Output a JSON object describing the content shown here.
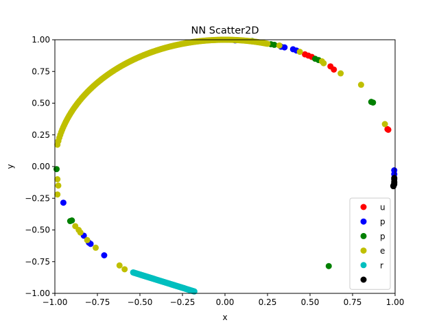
{
  "chart_data": {
    "type": "scatter",
    "title": "NN Scatter2D",
    "xlabel": "x",
    "ylabel": "y",
    "xlim": [
      -1.0,
      1.0
    ],
    "ylim": [
      -1.0,
      1.0
    ],
    "xticks": [
      "−1.00",
      "−0.75",
      "−0.50",
      "−0.25",
      "0.00",
      "0.25",
      "0.50",
      "0.75",
      "1.00"
    ],
    "yticks": [
      "−1.00",
      "−0.75",
      "−0.50",
      "−0.25",
      "0.00",
      "0.25",
      "0.50",
      "0.75",
      "1.00"
    ],
    "grid": false,
    "legend_position": "lower-right",
    "series": [
      {
        "name": "u",
        "color": "#ff0000",
        "points": [
          [
            0.47,
            0.885
          ],
          [
            0.49,
            0.875
          ],
          [
            0.51,
            0.865
          ],
          [
            0.62,
            0.79
          ],
          [
            0.64,
            0.765
          ],
          [
            0.955,
            0.295
          ],
          [
            0.96,
            0.29
          ]
        ]
      },
      {
        "name": "p",
        "color": "#0000ff",
        "points": [
          [
            0.06,
            0.995
          ],
          [
            0.33,
            0.945
          ],
          [
            0.35,
            0.94
          ],
          [
            0.4,
            0.925
          ],
          [
            0.42,
            0.915
          ],
          [
            0.995,
            -0.03
          ],
          [
            0.995,
            -0.06
          ],
          [
            -0.02,
            1.0
          ],
          [
            -0.95,
            -0.285
          ],
          [
            -0.83,
            -0.545
          ],
          [
            -0.8,
            -0.6
          ],
          [
            -0.79,
            -0.61
          ],
          [
            -0.71,
            -0.7
          ]
        ]
      },
      {
        "name": "p",
        "color": "#008000",
        "points": [
          [
            0.16,
            0.99
          ],
          [
            0.27,
            0.965
          ],
          [
            0.29,
            0.96
          ],
          [
            0.53,
            0.85
          ],
          [
            0.55,
            0.84
          ],
          [
            0.86,
            0.51
          ],
          [
            0.87,
            0.505
          ],
          [
            -0.99,
            -0.02
          ],
          [
            -0.91,
            -0.43
          ],
          [
            -0.9,
            -0.425
          ],
          [
            0.61,
            -0.785
          ]
        ]
      },
      {
        "name": "e",
        "color": "#bfbf00",
        "points": [
          [
            0.32,
            0.955
          ],
          [
            0.44,
            0.905
          ],
          [
            0.57,
            0.83
          ],
          [
            0.58,
            0.815
          ],
          [
            0.68,
            0.735
          ],
          [
            0.8,
            0.645
          ],
          [
            0.94,
            0.335
          ],
          [
            -0.98,
            -0.15
          ],
          [
            -0.985,
            -0.22
          ],
          [
            -0.985,
            -0.1
          ],
          [
            -0.88,
            -0.47
          ],
          [
            -0.86,
            -0.5
          ],
          [
            -0.85,
            -0.52
          ],
          [
            -0.81,
            -0.58
          ],
          [
            -0.76,
            -0.64
          ],
          [
            -0.62,
            -0.78
          ],
          [
            -0.59,
            -0.81
          ]
        ],
        "arc": {
          "x_from": -0.985,
          "x_to": 0.25,
          "y_min": 0.0
        }
      },
      {
        "name": "r",
        "color": "#00bfbf",
        "arc": {
          "x_from": -0.54,
          "x_to": -0.18,
          "y_min": -1.0,
          "y_from": -0.835,
          "y_to": -0.985
        }
      },
      {
        "name": "",
        "color": "#000000",
        "points": [
          [
            0.995,
            -0.09
          ],
          [
            0.995,
            -0.1
          ],
          [
            0.995,
            -0.12
          ],
          [
            0.995,
            -0.13
          ],
          [
            0.995,
            -0.14
          ],
          [
            0.99,
            -0.15
          ],
          [
            0.99,
            -0.155
          ]
        ]
      }
    ]
  }
}
